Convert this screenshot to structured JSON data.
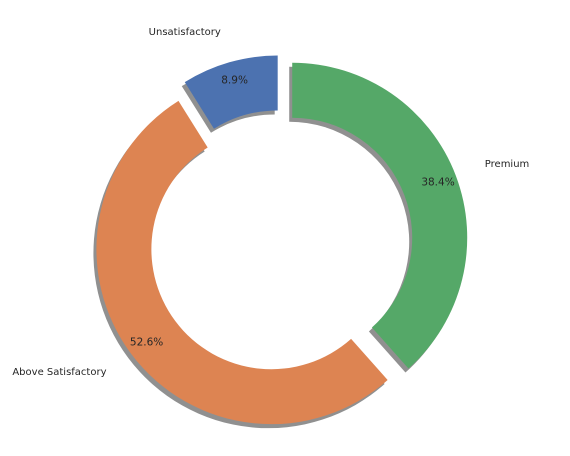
{
  "chart_data": {
    "type": "pie",
    "style": "donut",
    "shadow": true,
    "start_angle_deg": 90,
    "direction": "counterclockwise",
    "categories": [
      "Unsatisfactory",
      "Above Satisfactory",
      "Premium"
    ],
    "values": [
      8.9,
      52.6,
      38.4
    ],
    "value_labels": [
      "8.9%",
      "52.6%",
      "38.4%"
    ],
    "exploded": [
      true,
      true,
      true
    ],
    "colors": [
      "#4c72b0",
      "#dd8452",
      "#55a868"
    ],
    "title": "",
    "legend": "none"
  }
}
